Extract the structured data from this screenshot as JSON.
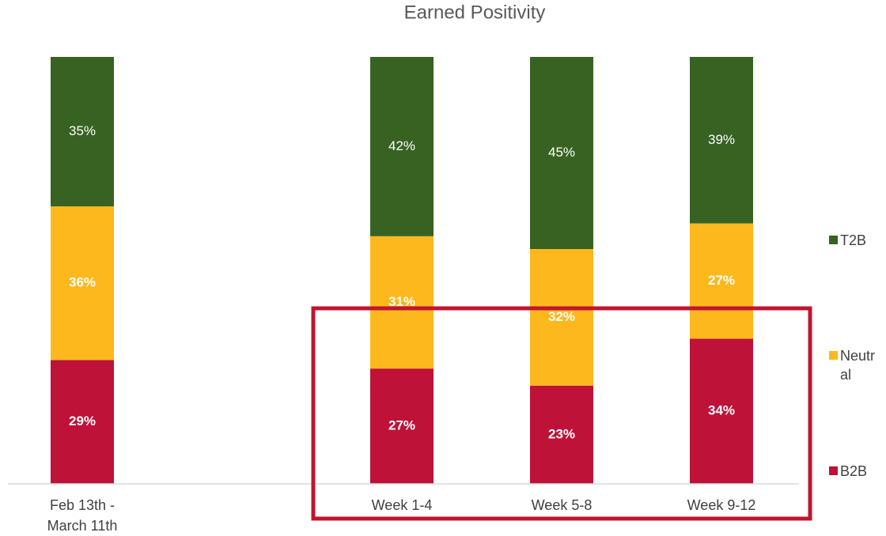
{
  "chart_data": {
    "type": "stacked_bar",
    "title": "Earned Positivity",
    "categories": [
      "Feb 13th - March 11th",
      null,
      "Week 1-4",
      "Week 5-8",
      "Week 9-12"
    ],
    "series": [
      {
        "name": "B2B",
        "color": "#be1238",
        "values": [
          29,
          null,
          27,
          23,
          34
        ],
        "value_labels": [
          "29%",
          null,
          "27%",
          "23%",
          "34%"
        ]
      },
      {
        "name": "Neutral",
        "color": "#fdb81e",
        "values": [
          36,
          null,
          31,
          32,
          27
        ],
        "value_labels": [
          "36%",
          null,
          "31%",
          "32%",
          "27%"
        ]
      },
      {
        "name": "T2B",
        "color": "#376222",
        "values": [
          35,
          null,
          42,
          45,
          39
        ],
        "value_labels": [
          "35%",
          null,
          "42%",
          "45%",
          "39%"
        ]
      }
    ]
  }
}
